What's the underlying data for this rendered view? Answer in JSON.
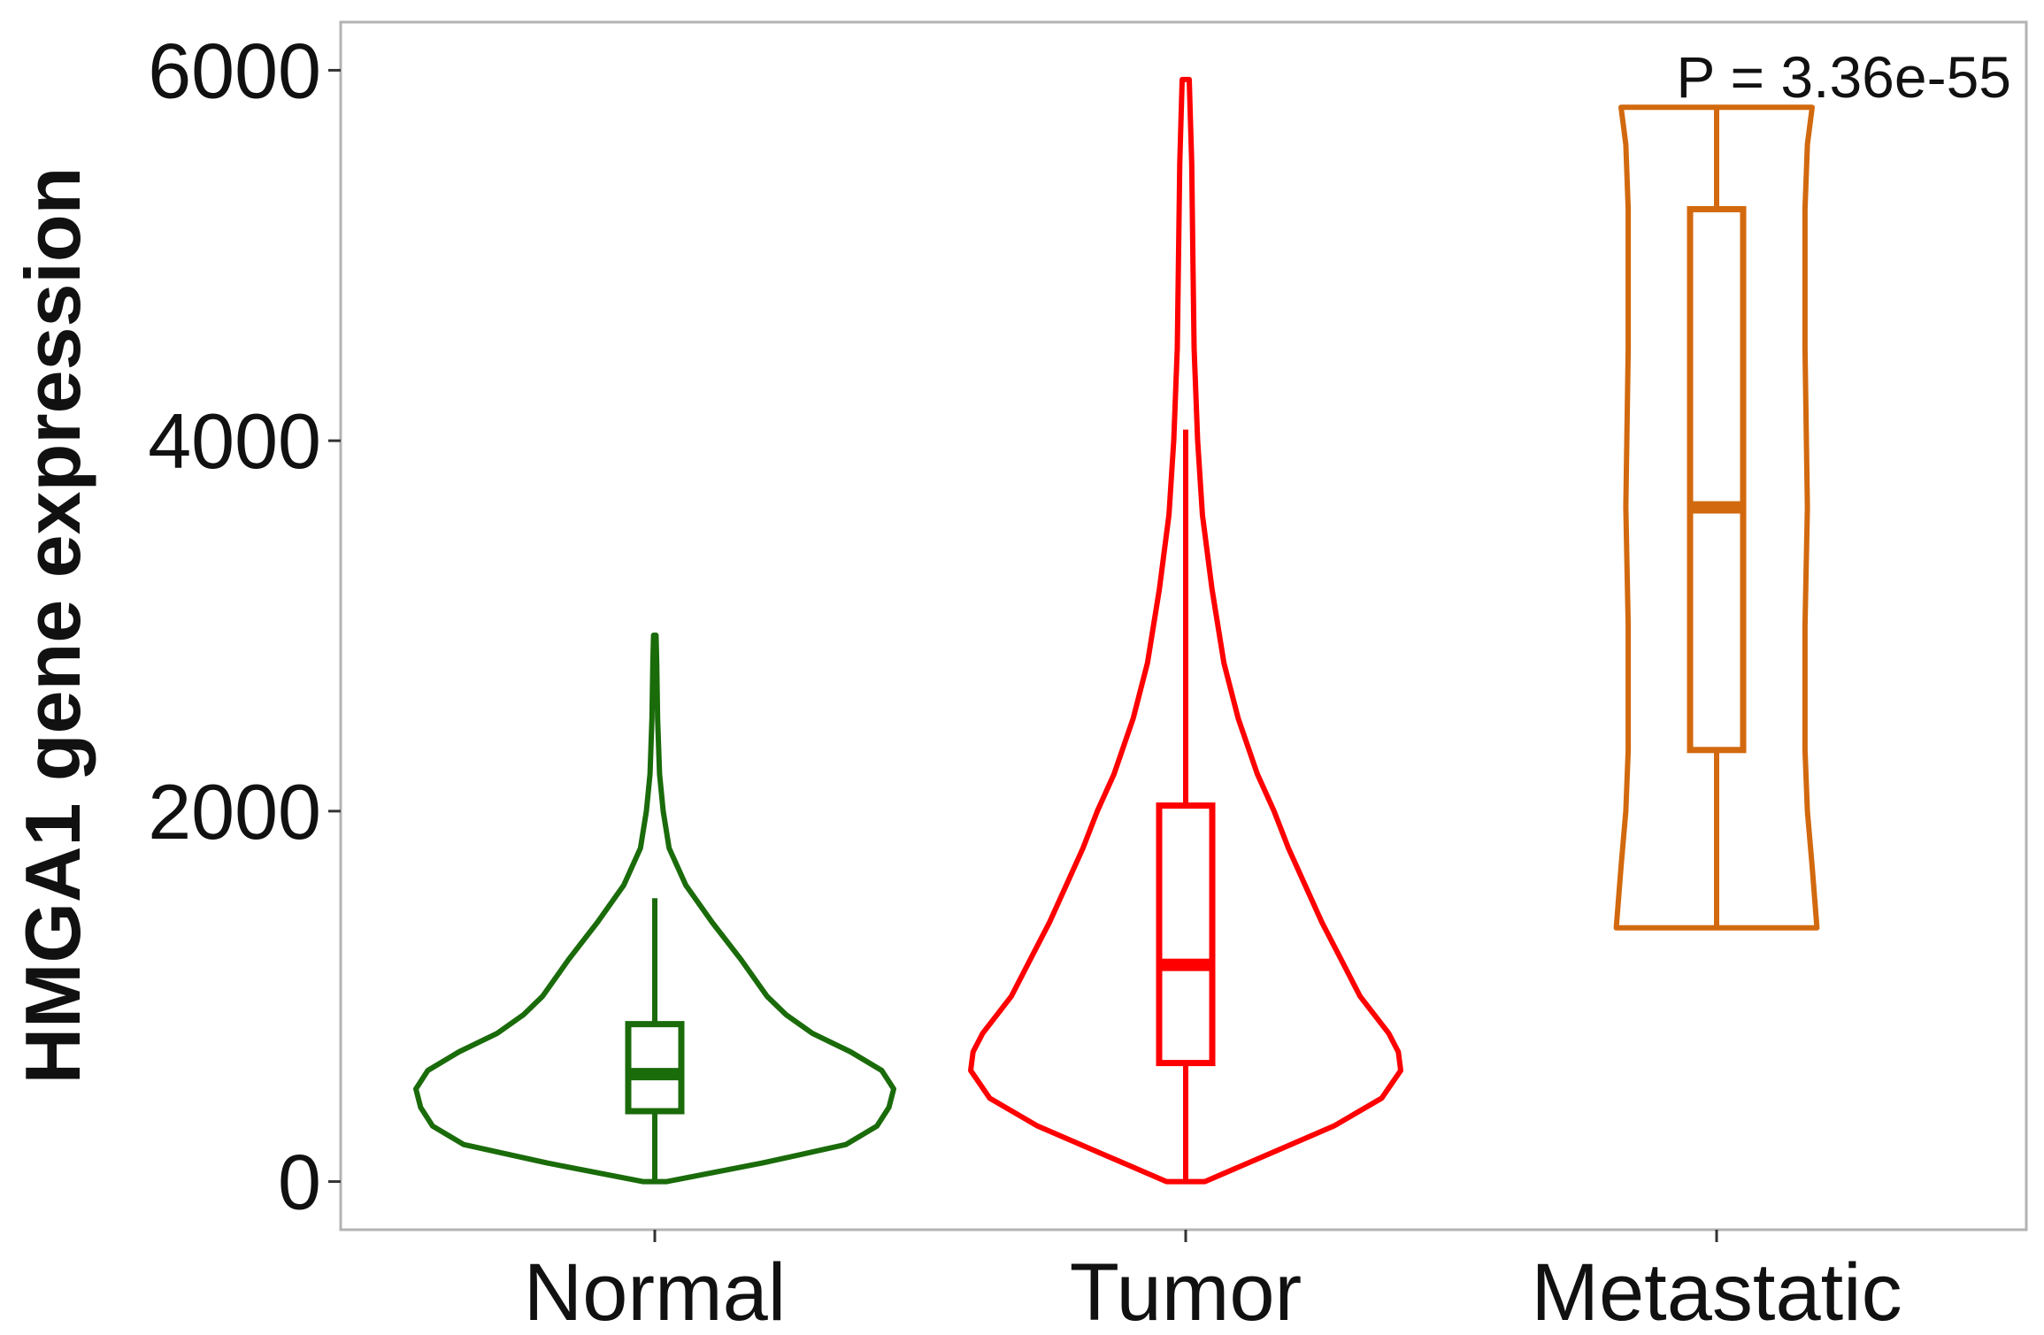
{
  "chart_data": {
    "type": "violin",
    "title": "",
    "xlabel": "",
    "ylabel": "HMGA1 gene expression",
    "ylim": [
      -260,
      6260
    ],
    "yticks": [
      0,
      2000,
      4000,
      6000
    ],
    "yticks_labels": [
      "0",
      "2000",
      "4000",
      "6000"
    ],
    "annotation": "P = 3.36e-55",
    "grid": false,
    "categories": [
      "Normal",
      "Tumor",
      "Metastatic"
    ],
    "series": [
      {
        "category": "Normal",
        "color": "#1a6b0a",
        "box": {
          "whisker_low": 0,
          "q1": 380,
          "median": 580,
          "q3": 850,
          "whisker_high": 1530
        },
        "violin_max_y": 2950,
        "density_profile": [
          [
            0,
            0.05
          ],
          [
            100,
            0.45
          ],
          [
            200,
            0.8
          ],
          [
            300,
            0.93
          ],
          [
            400,
            0.98
          ],
          [
            500,
            1.0
          ],
          [
            600,
            0.95
          ],
          [
            700,
            0.82
          ],
          [
            800,
            0.66
          ],
          [
            900,
            0.55
          ],
          [
            1000,
            0.47
          ],
          [
            1200,
            0.36
          ],
          [
            1400,
            0.24
          ],
          [
            1600,
            0.13
          ],
          [
            1800,
            0.06
          ],
          [
            2000,
            0.035
          ],
          [
            2200,
            0.02
          ],
          [
            2500,
            0.012
          ],
          [
            2800,
            0.008
          ],
          [
            2950,
            0.005
          ]
        ]
      },
      {
        "category": "Tumor",
        "color": "#ff0000",
        "box": {
          "whisker_low": 0,
          "q1": 640,
          "median": 1170,
          "q3": 2030,
          "whisker_high": 4060
        },
        "violin_max_y": 5950,
        "density_profile": [
          [
            0,
            0.08
          ],
          [
            150,
            0.35
          ],
          [
            300,
            0.62
          ],
          [
            450,
            0.82
          ],
          [
            600,
            0.9
          ],
          [
            700,
            0.89
          ],
          [
            800,
            0.85
          ],
          [
            1000,
            0.73
          ],
          [
            1200,
            0.65
          ],
          [
            1400,
            0.57
          ],
          [
            1600,
            0.5
          ],
          [
            1800,
            0.43
          ],
          [
            2000,
            0.37
          ],
          [
            2200,
            0.3
          ],
          [
            2500,
            0.22
          ],
          [
            2800,
            0.16
          ],
          [
            3200,
            0.11
          ],
          [
            3600,
            0.07
          ],
          [
            4000,
            0.05
          ],
          [
            4500,
            0.035
          ],
          [
            5000,
            0.03
          ],
          [
            5500,
            0.025
          ],
          [
            5950,
            0.015
          ]
        ]
      },
      {
        "category": "Metastatic",
        "color": "#d2690e",
        "box": {
          "whisker_low": 1370,
          "q1": 2330,
          "median": 3640,
          "q3": 5250,
          "whisker_high": 5800
        },
        "violin_max_y": 5800,
        "density_profile": [
          [
            1370,
            0.42
          ],
          [
            1700,
            0.4
          ],
          [
            2000,
            0.38
          ],
          [
            2330,
            0.37
          ],
          [
            3000,
            0.37
          ],
          [
            3640,
            0.38
          ],
          [
            4500,
            0.37
          ],
          [
            5250,
            0.37
          ],
          [
            5600,
            0.38
          ],
          [
            5800,
            0.4
          ]
        ]
      }
    ]
  }
}
